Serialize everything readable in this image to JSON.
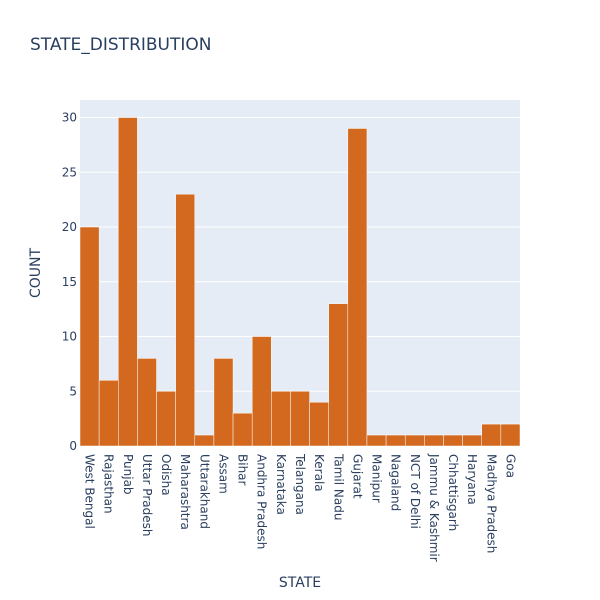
{
  "chart_data": {
    "type": "bar",
    "title": "STATE_DISTRIBUTION",
    "xlabel": "STATE",
    "ylabel": "COUNT",
    "categories": [
      "West Bengal",
      "Rajasthan",
      "Punjab",
      "Uttar Pradesh",
      "Odisha",
      "Maharashtra",
      "Uttarakhand",
      "Assam",
      "Bihar",
      "Andhra Pradesh",
      "Karnataka",
      "Telangana",
      "Kerala",
      "Tamil Nadu",
      "Gujarat",
      "Manipur",
      "Nagaland",
      "NCT of Delhi",
      "Jammu & Kashmir",
      "Chhattisgarh",
      "Haryana",
      "Madhya Pradesh",
      "Goa"
    ],
    "values": [
      20,
      6,
      30,
      8,
      5,
      23,
      1,
      8,
      3,
      10,
      5,
      5,
      4,
      13,
      29,
      1,
      1,
      1,
      1,
      1,
      1,
      2,
      2
    ],
    "ylim": [
      0,
      31.6
    ],
    "yticks": [
      0,
      5,
      10,
      15,
      20,
      25,
      30
    ],
    "grid": true,
    "bar_color": "#d2691e",
    "plot_bg": "#e5ecf6",
    "text_color": "#2a3f5f"
  }
}
